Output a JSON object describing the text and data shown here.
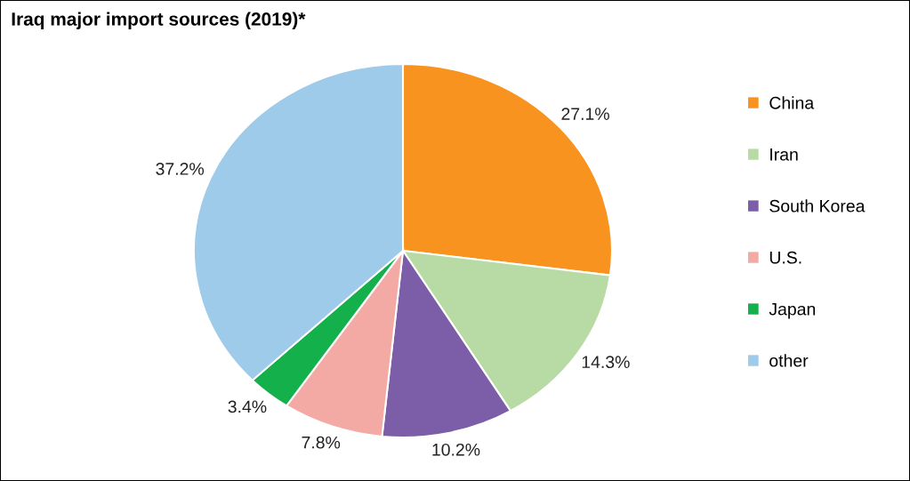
{
  "chart_data": {
    "type": "pie",
    "title": "Iraq major import sources (2019)*",
    "categories": [
      "China",
      "Iran",
      "South Korea",
      "U.S.",
      "Japan",
      "other"
    ],
    "values": [
      27.1,
      14.3,
      10.2,
      7.8,
      3.4,
      37.2
    ],
    "colors": [
      "#f7931e",
      "#b8dba5",
      "#7b5ea7",
      "#f4aaa4",
      "#13b04b",
      "#9dcbe9"
    ],
    "value_labels": [
      "27.1%",
      "14.3%",
      "10.2%",
      "7.8%",
      "3.4%",
      "37.2%"
    ],
    "legend": "right"
  }
}
